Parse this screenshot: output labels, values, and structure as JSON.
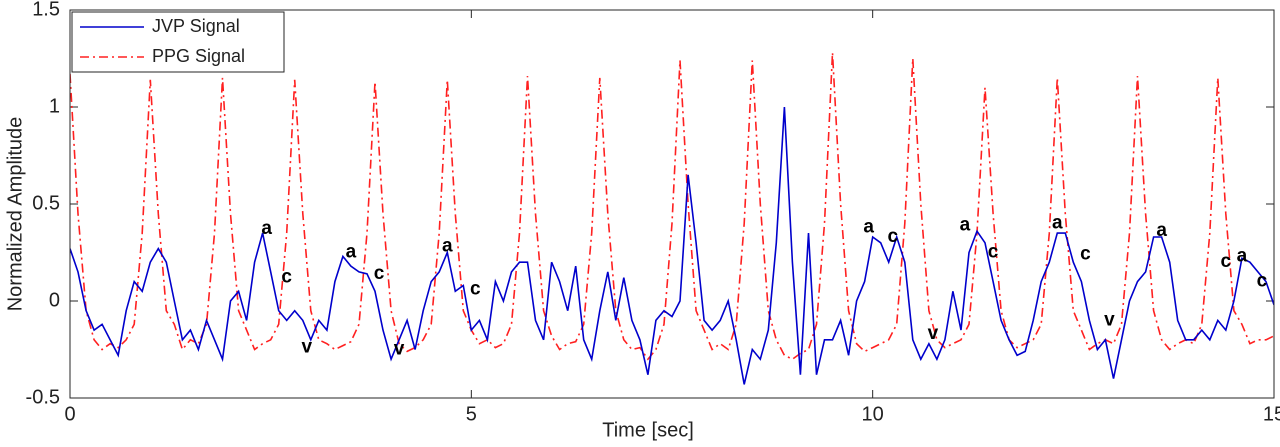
{
  "chart_data": {
    "type": "line",
    "xlabel": "Time [sec]",
    "ylabel": "Normalized Amplitude",
    "xlim": [
      0,
      15
    ],
    "ylim": [
      -0.5,
      1.5
    ],
    "xticks": [
      0,
      5,
      10,
      15
    ],
    "yticks": [
      -0.5,
      0,
      0.5,
      1,
      1.5
    ],
    "grid": false,
    "legend": "upper left",
    "x": [
      0,
      0.1,
      0.2,
      0.3,
      0.4,
      0.5,
      0.6,
      0.7,
      0.8,
      0.9,
      1,
      1.1,
      1.2,
      1.3,
      1.4,
      1.5,
      1.6,
      1.7,
      1.8,
      1.9,
      2,
      2.1,
      2.2,
      2.3,
      2.4,
      2.5,
      2.6,
      2.7,
      2.8,
      2.9,
      3,
      3.1,
      3.2,
      3.3,
      3.4,
      3.5,
      3.6,
      3.7,
      3.8,
      3.9,
      4,
      4.1,
      4.2,
      4.3,
      4.4,
      4.5,
      4.6,
      4.7,
      4.8,
      4.9,
      5,
      5.1,
      5.2,
      5.3,
      5.4,
      5.5,
      5.6,
      5.7,
      5.8,
      5.9,
      6,
      6.1,
      6.2,
      6.3,
      6.4,
      6.5,
      6.6,
      6.7,
      6.8,
      6.9,
      7,
      7.1,
      7.2,
      7.3,
      7.4,
      7.5,
      7.6,
      7.7,
      7.8,
      7.9,
      8,
      8.1,
      8.2,
      8.3,
      8.4,
      8.5,
      8.6,
      8.7,
      8.8,
      8.9,
      9,
      9.1,
      9.2,
      9.3,
      9.4,
      9.5,
      9.6,
      9.7,
      9.8,
      9.9,
      10,
      10.1,
      10.2,
      10.3,
      10.4,
      10.5,
      10.6,
      10.7,
      10.8,
      10.9,
      11,
      11.1,
      11.2,
      11.3,
      11.4,
      11.5,
      11.6,
      11.7,
      11.8,
      11.9,
      12,
      12.1,
      12.2,
      12.3,
      12.4,
      12.5,
      12.6,
      12.7,
      12.8,
      12.9,
      13,
      13.1,
      13.2,
      13.3,
      13.4,
      13.5,
      13.6,
      13.7,
      13.8,
      13.9,
      14,
      14.1,
      14.2,
      14.3,
      14.4,
      14.5,
      14.6,
      14.7,
      14.8,
      14.9,
      15
    ],
    "series": [
      {
        "name": "JVP Signal",
        "color": "#0000cc",
        "dash": "solid",
        "values": [
          0.27,
          0.15,
          -0.05,
          -0.15,
          -0.12,
          -0.2,
          -0.28,
          -0.05,
          0.1,
          0.05,
          0.2,
          0.27,
          0.2,
          0,
          -0.2,
          -0.15,
          -0.25,
          -0.1,
          -0.2,
          -0.3,
          0,
          0.05,
          -0.1,
          0.2,
          0.35,
          0.15,
          -0.05,
          -0.1,
          -0.05,
          -0.1,
          -0.2,
          -0.1,
          -0.15,
          0.1,
          0.23,
          0.18,
          0.15,
          0.14,
          0.05,
          -0.15,
          -0.3,
          -0.2,
          -0.1,
          -0.25,
          -0.05,
          0.1,
          0.15,
          0.25,
          0.05,
          0.08,
          -0.15,
          -0.1,
          -0.2,
          0.1,
          0,
          0.15,
          0.2,
          0.2,
          -0.1,
          -0.2,
          0.2,
          0.1,
          -0.05,
          0.18,
          -0.2,
          -0.3,
          -0.05,
          0.15,
          -0.1,
          0.12,
          -0.1,
          -0.2,
          -0.38,
          -0.1,
          -0.05,
          -0.08,
          0,
          0.65,
          0.3,
          -0.1,
          -0.15,
          -0.1,
          0,
          -0.2,
          -0.43,
          -0.25,
          -0.3,
          -0.15,
          0.3,
          1,
          0.2,
          -0.38,
          0.35,
          -0.38,
          -0.2,
          -0.2,
          -0.1,
          -0.28,
          0,
          0.1,
          0.33,
          0.3,
          0.2,
          0.33,
          0.2,
          -0.2,
          -0.3,
          -0.22,
          -0.3,
          -0.2,
          0.05,
          -0.15,
          0.25,
          0.36,
          0.3,
          0.1,
          -0.1,
          -0.2,
          -0.28,
          -0.26,
          -0.1,
          0.1,
          0.2,
          0.35,
          0.35,
          0.2,
          0.1,
          -0.1,
          -0.25,
          -0.2,
          -0.4,
          -0.2,
          0,
          0.1,
          0.15,
          0.33,
          0.33,
          0.2,
          -0.1,
          -0.2,
          -0.2,
          -0.15,
          -0.2,
          -0.1,
          -0.15,
          0,
          0.22,
          0.2,
          0.15,
          0.1,
          -0.02
        ]
      },
      {
        "name": "PPG Signal",
        "color": "#ff2020",
        "dash": "dashdot",
        "values": [
          1.17,
          0.45,
          -0.05,
          -0.2,
          -0.25,
          -0.22,
          -0.24,
          -0.2,
          -0.12,
          0.35,
          1.14,
          0.45,
          -0.05,
          -0.12,
          -0.25,
          -0.2,
          -0.22,
          -0.12,
          0.35,
          1.15,
          0.45,
          -0.05,
          -0.15,
          -0.25,
          -0.22,
          -0.2,
          -0.12,
          0.35,
          1.14,
          0.45,
          -0.05,
          -0.2,
          -0.22,
          -0.25,
          -0.23,
          -0.21,
          -0.12,
          0.35,
          1.13,
          0.45,
          -0.05,
          -0.22,
          -0.26,
          -0.24,
          -0.2,
          -0.12,
          0.35,
          1.14,
          0.45,
          -0.05,
          -0.15,
          -0.22,
          -0.2,
          -0.24,
          -0.22,
          -0.12,
          0.35,
          1.16,
          0.45,
          -0.05,
          -0.18,
          -0.25,
          -0.22,
          -0.21,
          -0.12,
          0.35,
          1.15,
          0.45,
          -0.05,
          -0.2,
          -0.25,
          -0.24,
          -0.3,
          -0.25,
          -0.12,
          0.4,
          1.24,
          0.5,
          -0.05,
          -0.15,
          -0.25,
          -0.22,
          -0.25,
          -0.12,
          0.4,
          1.24,
          0.5,
          -0.05,
          -0.2,
          -0.28,
          -0.3,
          -0.27,
          -0.25,
          -0.12,
          0.4,
          1.28,
          0.5,
          -0.05,
          -0.22,
          -0.26,
          -0.24,
          -0.22,
          -0.2,
          -0.12,
          0.4,
          1.25,
          0.5,
          -0.05,
          -0.2,
          -0.24,
          -0.22,
          -0.2,
          -0.12,
          0.35,
          1.1,
          0.45,
          -0.05,
          -0.2,
          -0.24,
          -0.22,
          -0.2,
          -0.12,
          0.35,
          1.15,
          0.45,
          -0.05,
          -0.15,
          -0.25,
          -0.22,
          -0.2,
          -0.22,
          -0.12,
          0.35,
          1.16,
          0.45,
          -0.05,
          -0.2,
          -0.25,
          -0.22,
          -0.2,
          -0.22,
          -0.12,
          0.35,
          1.15,
          0.45,
          -0.05,
          -0.12,
          -0.22,
          -0.2,
          -0.2,
          -0.18
        ]
      }
    ],
    "annotations": [
      {
        "text": "a",
        "x": 2.45,
        "y": 0.37
      },
      {
        "text": "c",
        "x": 2.7,
        "y": 0.12
      },
      {
        "text": "v",
        "x": 2.95,
        "y": -0.24
      },
      {
        "text": "a",
        "x": 3.5,
        "y": 0.25
      },
      {
        "text": "c",
        "x": 3.85,
        "y": 0.14
      },
      {
        "text": "v",
        "x": 4.1,
        "y": -0.25
      },
      {
        "text": "a",
        "x": 4.7,
        "y": 0.28
      },
      {
        "text": "c",
        "x": 5.05,
        "y": 0.06
      },
      {
        "text": "a",
        "x": 9.95,
        "y": 0.38
      },
      {
        "text": "c",
        "x": 10.25,
        "y": 0.33
      },
      {
        "text": "v",
        "x": 10.75,
        "y": -0.17
      },
      {
        "text": "a",
        "x": 11.15,
        "y": 0.39
      },
      {
        "text": "c",
        "x": 11.5,
        "y": 0.25
      },
      {
        "text": "a",
        "x": 12.3,
        "y": 0.4
      },
      {
        "text": "c",
        "x": 12.65,
        "y": 0.24
      },
      {
        "text": "v",
        "x": 12.95,
        "y": -0.1
      },
      {
        "text": "a",
        "x": 13.6,
        "y": 0.36
      },
      {
        "text": "c",
        "x": 14.4,
        "y": 0.2
      },
      {
        "text": "a",
        "x": 14.6,
        "y": 0.23
      },
      {
        "text": "c",
        "x": 14.85,
        "y": 0.1
      }
    ]
  }
}
